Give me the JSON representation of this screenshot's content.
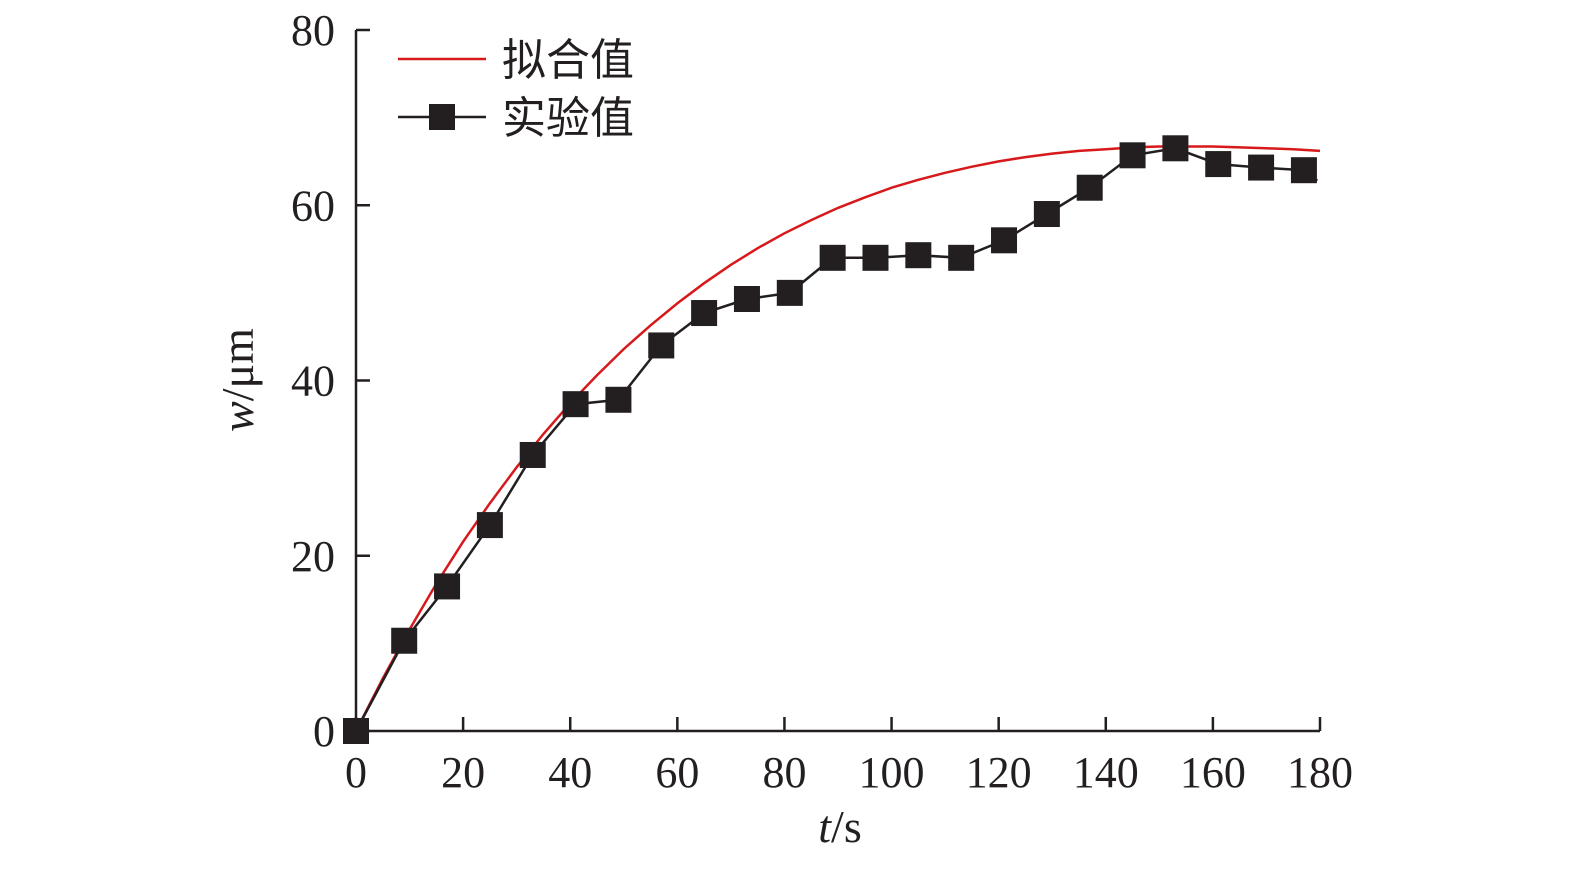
{
  "chart_data": {
    "type": "line",
    "xlabel_var": "t",
    "xlabel_unit": "/s",
    "ylabel_var": "w",
    "ylabel_unit": "/μm",
    "xlim": [
      0,
      180
    ],
    "ylim": [
      0,
      80
    ],
    "xticks": [
      0,
      20,
      40,
      60,
      80,
      100,
      120,
      140,
      160,
      180
    ],
    "yticks": [
      0,
      20,
      40,
      60,
      80
    ],
    "grid": false,
    "legend_position": "top-left",
    "series": [
      {
        "name": "拟合值",
        "color": "#d7191c",
        "marker": "none",
        "x": [
          0,
          5,
          10,
          15,
          20,
          25,
          30,
          35,
          40,
          45,
          50,
          55,
          60,
          65,
          70,
          75,
          80,
          85,
          90,
          95,
          100,
          105,
          110,
          115,
          120,
          125,
          130,
          135,
          140,
          145,
          150,
          155,
          160,
          165,
          170,
          175,
          180
        ],
        "values": [
          0,
          6.0,
          11.6,
          16.8,
          21.6,
          26.0,
          30.1,
          33.9,
          37.4,
          40.6,
          43.6,
          46.3,
          48.8,
          51.1,
          53.2,
          55.1,
          56.8,
          58.3,
          59.7,
          60.9,
          62.0,
          62.9,
          63.7,
          64.4,
          65.0,
          65.5,
          65.9,
          66.2,
          66.4,
          66.6,
          66.7,
          66.7,
          66.7,
          66.6,
          66.5,
          66.4,
          66.2
        ]
      },
      {
        "name": "实验值",
        "color": "#231f20",
        "marker": "square",
        "x": [
          0,
          9,
          17,
          25,
          33,
          41,
          49,
          57,
          65,
          73,
          81,
          89,
          97,
          105,
          113,
          121,
          129,
          137,
          145,
          153,
          161,
          169,
          177
        ],
        "values": [
          0,
          10.3,
          16.5,
          23.5,
          31.5,
          37.3,
          37.8,
          44.0,
          47.7,
          49.3,
          50.0,
          54.0,
          54.0,
          54.3,
          54.0,
          56.0,
          59.0,
          62.0,
          65.7,
          66.5,
          64.7,
          64.3,
          64.0
        ]
      }
    ]
  }
}
